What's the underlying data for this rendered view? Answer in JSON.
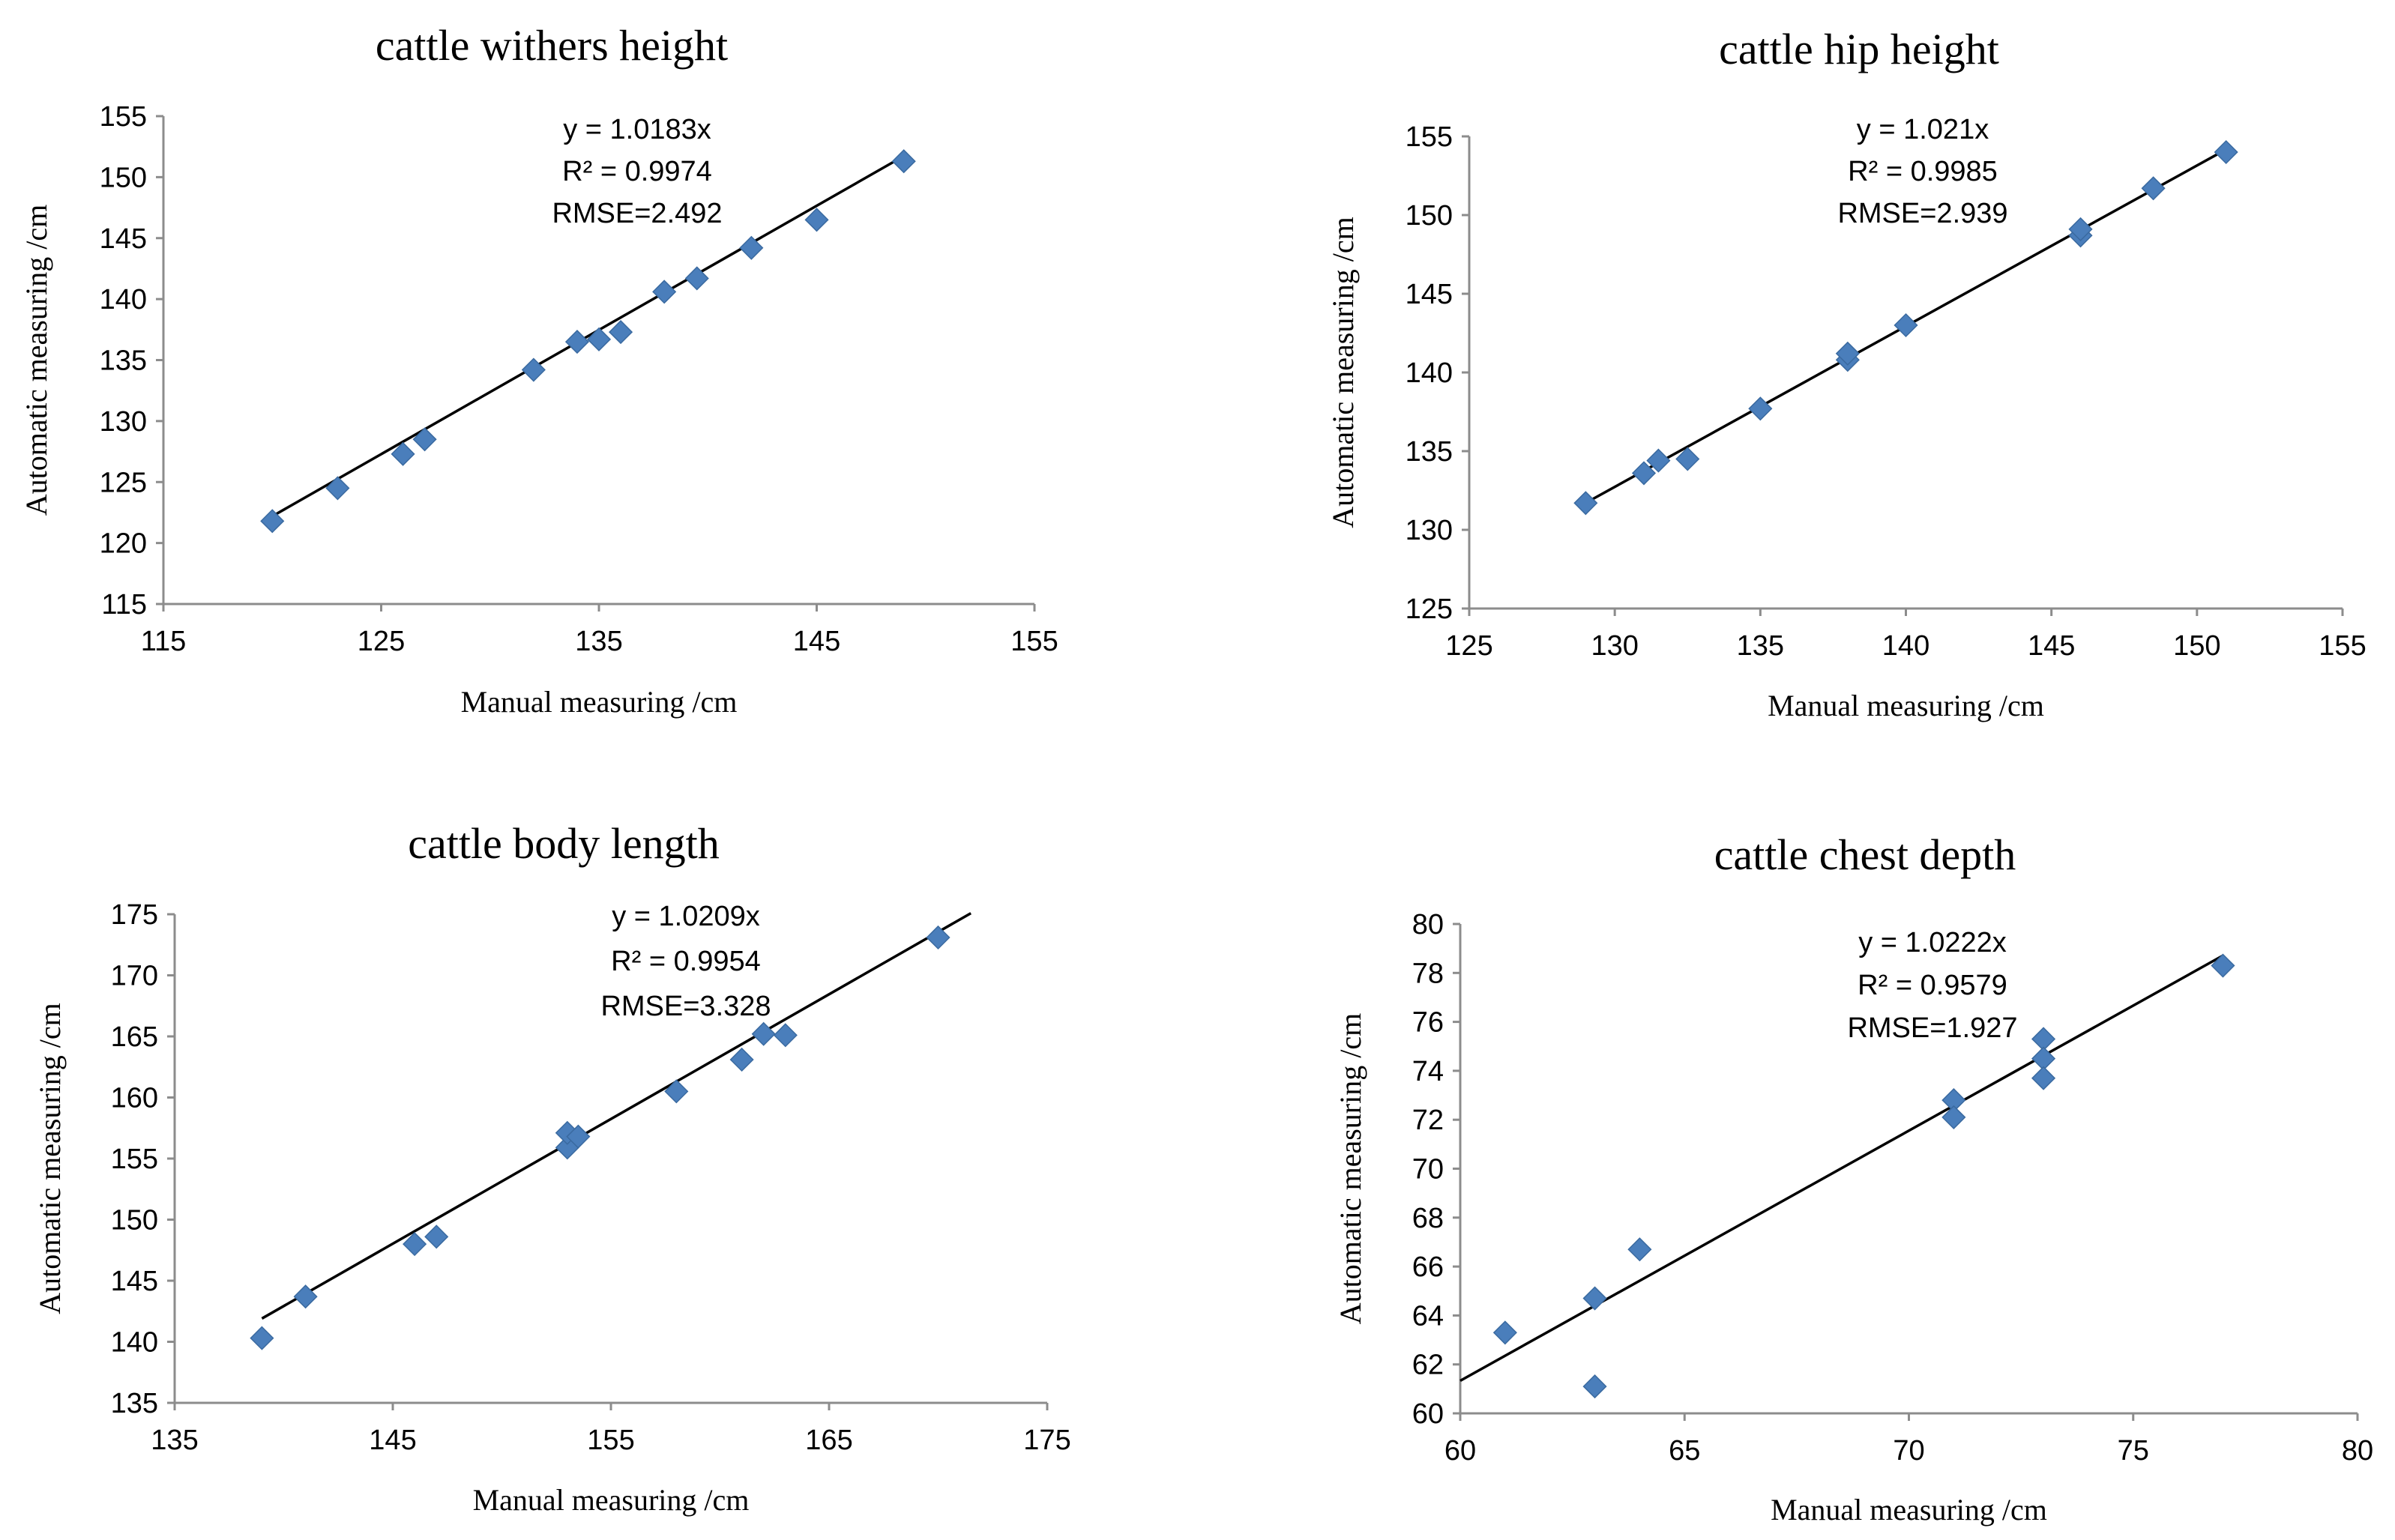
{
  "colors": {
    "marker": "#4a7ebb",
    "marker_stroke": "#3a6aa0",
    "fit_line": "#000000",
    "axis": "#8c8c8c"
  },
  "chart_data": [
    {
      "type": "scatter",
      "title": "cattle withers height",
      "xlabel": "Manual measuring  /cm",
      "ylabel": "Automatic measuring  /cm",
      "xlim": [
        115,
        155
      ],
      "ylim": [
        115,
        155
      ],
      "xticks": [
        115,
        125,
        135,
        145,
        155
      ],
      "yticks": [
        115,
        120,
        125,
        130,
        135,
        140,
        145,
        150,
        155
      ],
      "x": [
        120,
        123,
        126,
        127,
        132,
        134,
        135,
        136,
        138,
        139.5,
        142,
        145,
        149
      ],
      "y": [
        121.8,
        124.5,
        127.3,
        128.5,
        134.2,
        136.5,
        136.7,
        137.3,
        140.6,
        141.7,
        144.2,
        146.5,
        151.3
      ],
      "fit": {
        "slope": 1.0183,
        "x_range": [
          120,
          149
        ]
      },
      "annotations": [
        "y = 1.0183x",
        "R² = 0.9974",
        "RMSE=2.492"
      ]
    },
    {
      "type": "scatter",
      "title": "cattle hip height",
      "xlabel": "Manual measuring  /cm",
      "ylabel": "Automatic measuring  /cm",
      "xlim": [
        125,
        155
      ],
      "ylim": [
        125,
        155
      ],
      "xticks": [
        125,
        130,
        135,
        140,
        145,
        150,
        155
      ],
      "yticks": [
        125,
        130,
        135,
        140,
        145,
        150,
        155
      ],
      "x": [
        129,
        131,
        131.5,
        132.5,
        135,
        138,
        138,
        140,
        146,
        146,
        148.5,
        151
      ],
      "y": [
        131.7,
        133.6,
        134.4,
        134.5,
        137.7,
        140.8,
        141.2,
        143,
        148.7,
        149.1,
        151.7,
        154
      ],
      "fit": {
        "slope": 1.021,
        "x_range": [
          129,
          151
        ]
      },
      "annotations": [
        "y = 1.021x",
        "R² = 0.9985",
        "RMSE=2.939"
      ]
    },
    {
      "type": "scatter",
      "title": "cattle body length",
      "xlabel": "Manual measuring  /cm",
      "ylabel": "Automatic measuring  /cm",
      "xlim": [
        135,
        175
      ],
      "ylim": [
        135,
        175
      ],
      "xticks": [
        135,
        145,
        155,
        165,
        175
      ],
      "yticks": [
        135,
        140,
        145,
        150,
        155,
        160,
        165,
        170,
        175
      ],
      "x": [
        139,
        141,
        146,
        147,
        153,
        153,
        153.5,
        158,
        161,
        162,
        163,
        170
      ],
      "y": [
        140.3,
        143.7,
        148,
        148.6,
        155.9,
        157.1,
        156.8,
        160.5,
        163.1,
        165.2,
        165.1,
        173.1
      ],
      "fit": {
        "slope": 1.0209,
        "x_range": [
          139,
          171.5
        ]
      },
      "annotations": [
        "y = 1.0209x",
        "R² = 0.9954",
        "RMSE=3.328"
      ]
    },
    {
      "type": "scatter",
      "title": "cattle chest depth",
      "xlabel": "Manual measuring  /cm",
      "ylabel": "Automatic measuring  /cm",
      "xlim": [
        60,
        80
      ],
      "ylim": [
        60,
        80
      ],
      "xticks": [
        60,
        65,
        70,
        75,
        80
      ],
      "yticks": [
        60,
        62,
        64,
        66,
        68,
        70,
        72,
        74,
        76,
        78,
        80
      ],
      "x": [
        61,
        63,
        63,
        64,
        71,
        71,
        73,
        73,
        73,
        77
      ],
      "y": [
        63.3,
        64.7,
        61.1,
        66.7,
        72.8,
        72.1,
        75.3,
        74.5,
        73.7,
        78.3
      ],
      "fit": {
        "slope": 1.0222,
        "x_range": [
          60,
          77
        ]
      },
      "annotations": [
        "y  =  1.0222x",
        "R²  =  0.9579",
        "RMSE=1.927"
      ]
    }
  ]
}
